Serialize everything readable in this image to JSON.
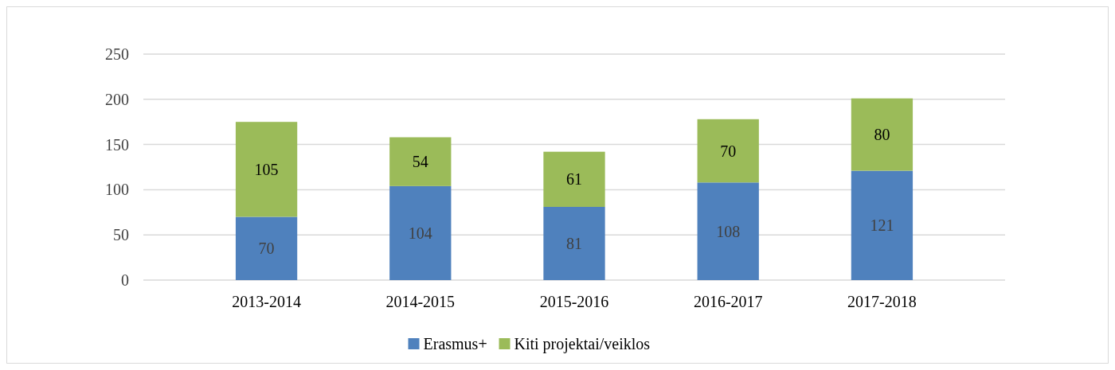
{
  "chart_data": {
    "type": "bar",
    "stacked": true,
    "data_labels": true,
    "grid": "y",
    "legend": "bottom",
    "categories": [
      "2013-2014",
      "2014-2015",
      "2015-2016",
      "2016-2017",
      "2017-2018"
    ],
    "series": [
      {
        "name": "Erasmus+",
        "color": "#4f81bd",
        "values": [
          70,
          104,
          81,
          108,
          121
        ]
      },
      {
        "name": "Kiti projektai/veiklos",
        "color": "#9bbb59",
        "values": [
          105,
          54,
          61,
          70,
          80
        ]
      }
    ],
    "ylim": [
      0,
      250
    ],
    "yticks": [
      0,
      50,
      100,
      150,
      200,
      250
    ]
  }
}
